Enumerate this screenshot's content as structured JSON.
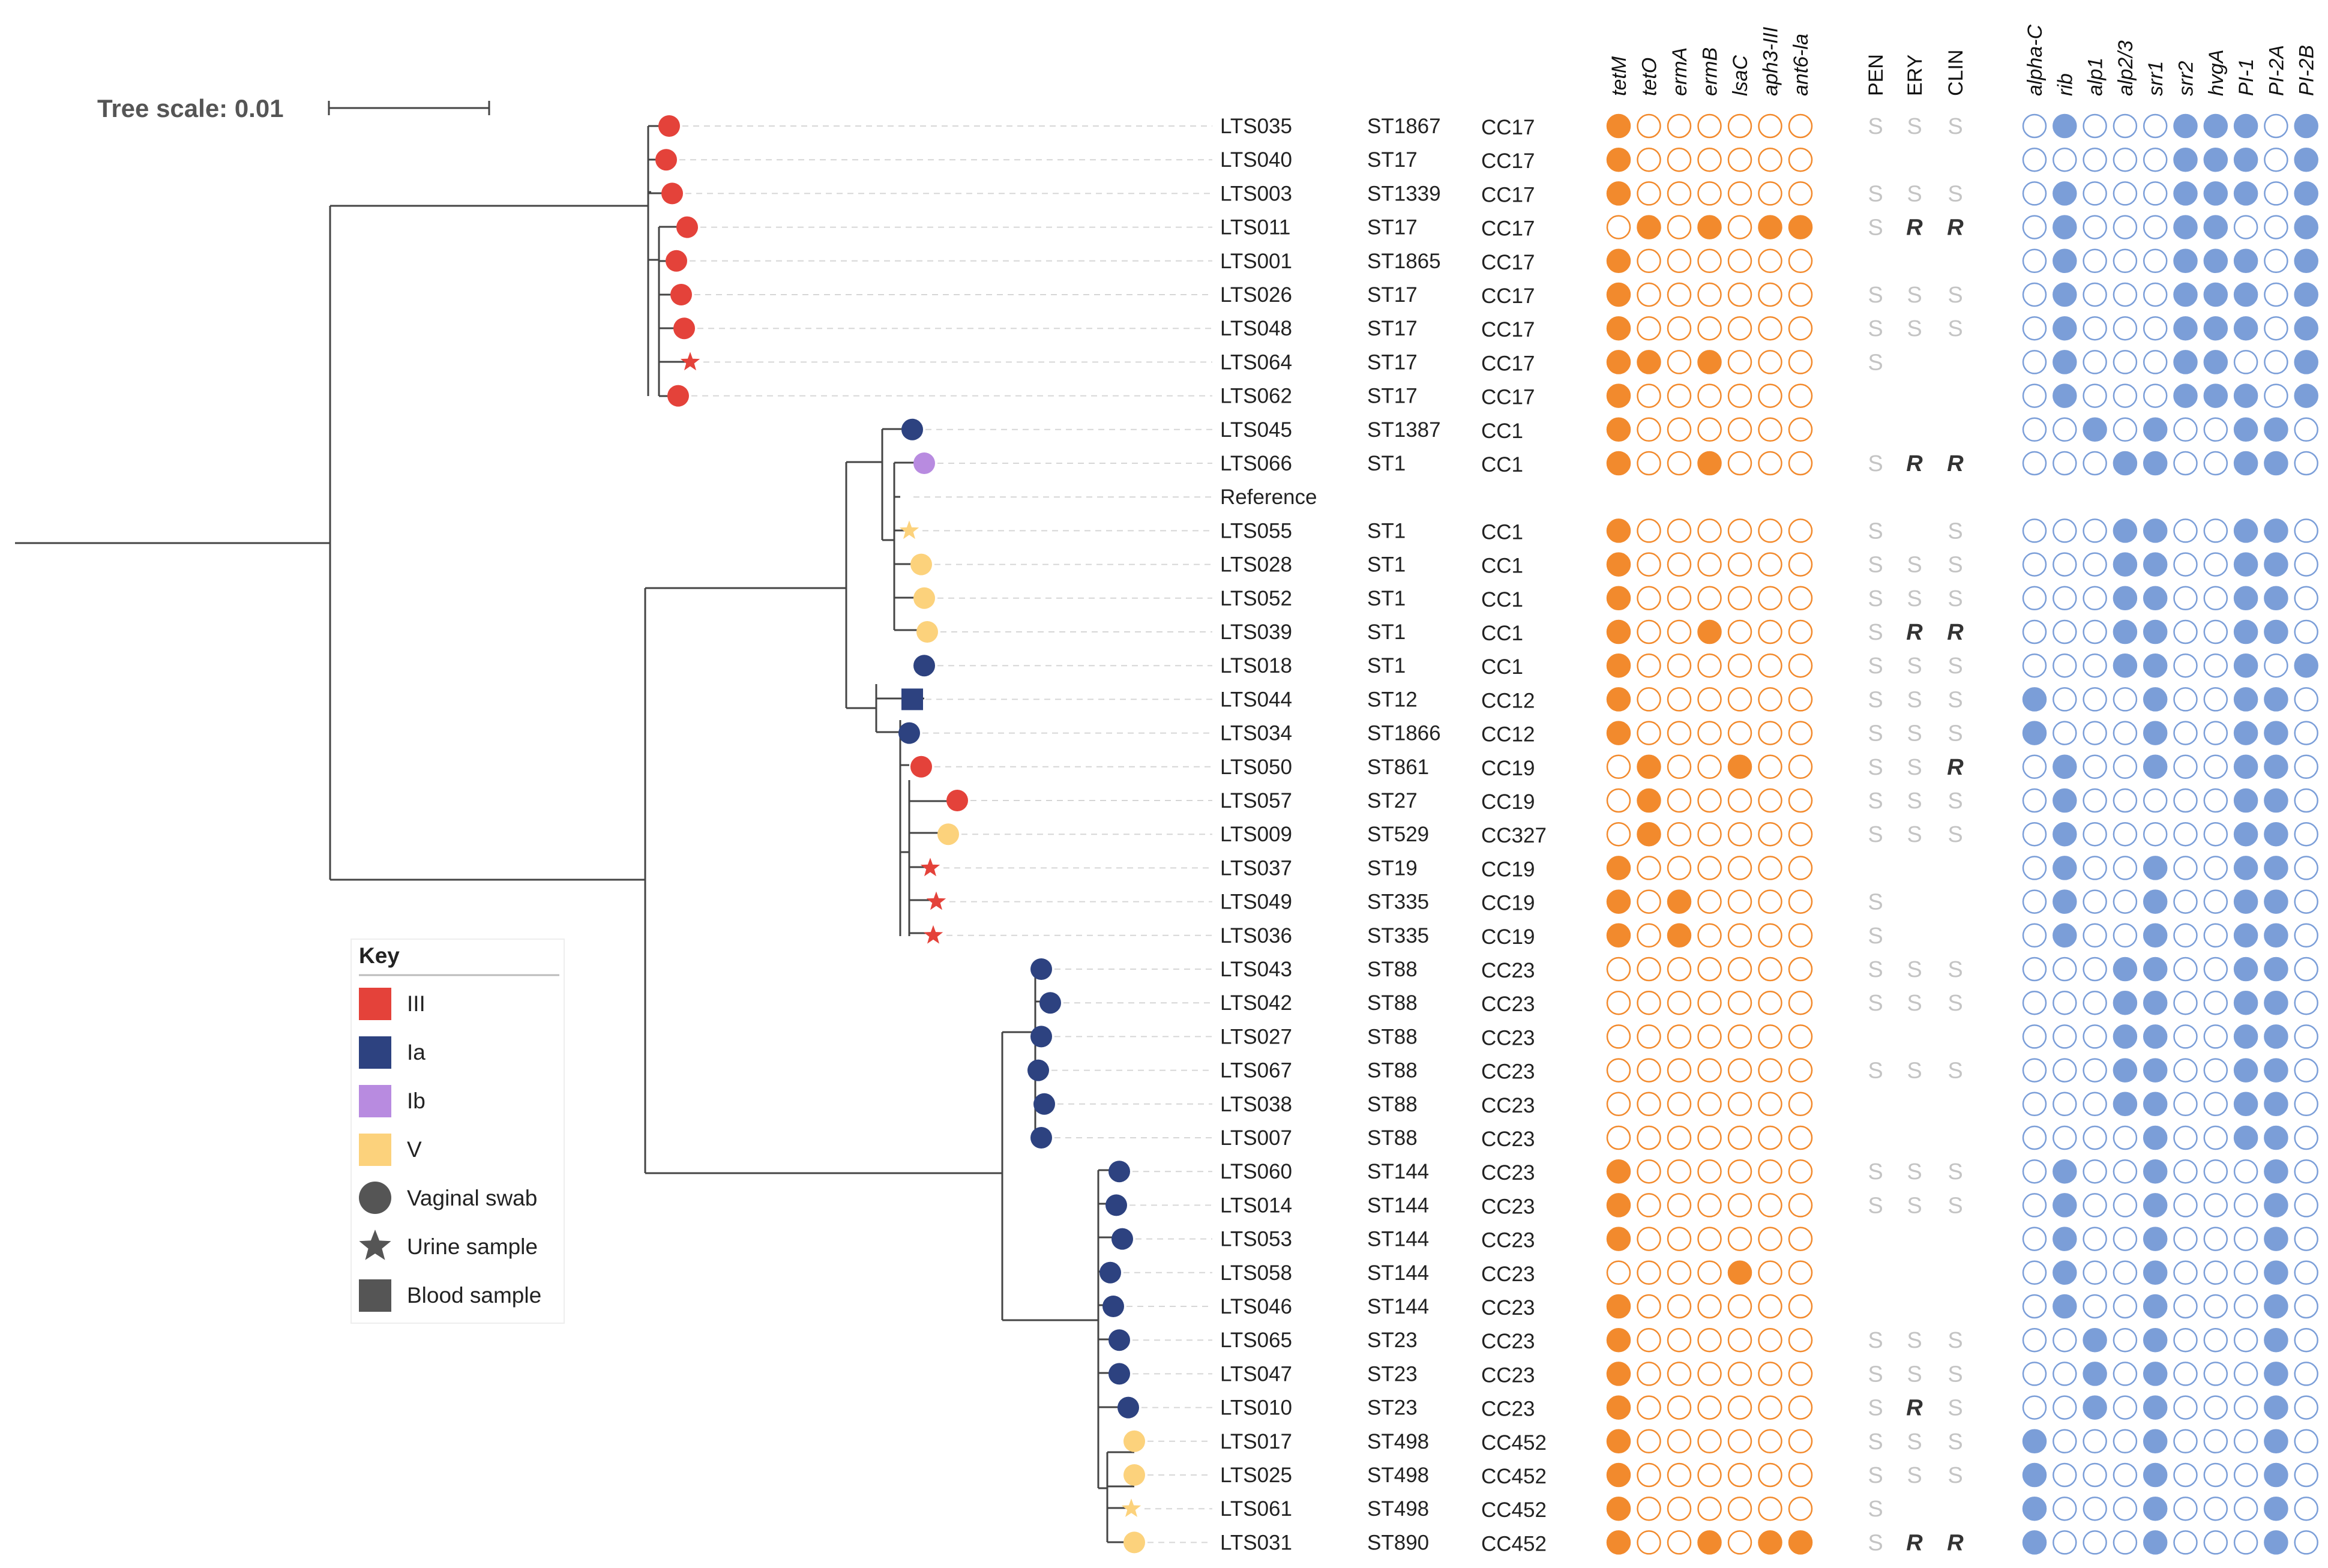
{
  "tree_scale": {
    "label": "Tree scale: 0.01"
  },
  "colors": {
    "III": "#e4423a",
    "Ia": "#2d4280",
    "Ib": "#b88be0",
    "V": "#fcd27c",
    "gene": "#f28a2d",
    "virulence": "#7b9ed8",
    "res_S": "#c4c4c4",
    "res_R": "#333333",
    "cc_normal": "#222222",
    "cc_purple": "#3d3883"
  },
  "gene_headers": [
    "tetM",
    "tetO",
    "ermA",
    "ermB",
    "lsaC",
    "aph3-III",
    "ant6-la"
  ],
  "res_headers": [
    "PEN",
    "ERY",
    "CLIN"
  ],
  "vir_headers": [
    "alpha-C",
    "rib",
    "alp1",
    "alp2/3",
    "srr1",
    "srr2",
    "hvgA",
    "PI-1",
    "PI-2A",
    "PI-2B"
  ],
  "key": {
    "title": "Key",
    "items": [
      {
        "label": "III",
        "shape": "square",
        "color": "#e4423a"
      },
      {
        "label": "Ia",
        "shape": "square",
        "color": "#2d4280"
      },
      {
        "label": "Ib",
        "shape": "square",
        "color": "#b88be0"
      },
      {
        "label": "V",
        "shape": "square",
        "color": "#fcd27c"
      },
      {
        "label": "Vaginal swab",
        "shape": "circle",
        "color": "#555555"
      },
      {
        "label": "Urine sample",
        "shape": "star",
        "color": "#555555"
      },
      {
        "label": "Blood sample",
        "shape": "square",
        "color": "#555555"
      }
    ]
  },
  "rows": [
    {
      "id": "LTS035",
      "st": "ST1867",
      "cc": "CC17",
      "serotype": "III",
      "source": "vaginal",
      "genes": [
        1,
        0,
        0,
        0,
        0,
        0,
        0
      ],
      "res": [
        "S",
        "S",
        "S"
      ],
      "vir": [
        0,
        1,
        0,
        0,
        0,
        1,
        1,
        1,
        0,
        1
      ]
    },
    {
      "id": "LTS040",
      "st": "ST17",
      "cc": "CC17",
      "serotype": "III",
      "source": "vaginal",
      "genes": [
        1,
        0,
        0,
        0,
        0,
        0,
        0
      ],
      "res": [
        "",
        "",
        ""
      ],
      "vir": [
        0,
        0,
        0,
        0,
        0,
        1,
        1,
        1,
        0,
        1
      ]
    },
    {
      "id": "LTS003",
      "st": "ST1339",
      "cc": "CC17",
      "serotype": "III",
      "source": "vaginal",
      "genes": [
        1,
        0,
        0,
        0,
        0,
        0,
        0
      ],
      "res": [
        "S",
        "S",
        "S"
      ],
      "vir": [
        0,
        1,
        0,
        0,
        0,
        1,
        1,
        1,
        0,
        1
      ]
    },
    {
      "id": "LTS011",
      "st": "ST17",
      "cc": "CC17",
      "serotype": "III",
      "source": "vaginal",
      "genes": [
        0,
        1,
        0,
        1,
        0,
        1,
        1
      ],
      "res": [
        "S",
        "R",
        "R"
      ],
      "vir": [
        0,
        1,
        0,
        0,
        0,
        1,
        1,
        0,
        0,
        1
      ]
    },
    {
      "id": "LTS001",
      "st": "ST1865",
      "cc": "CC17",
      "serotype": "III",
      "source": "vaginal",
      "genes": [
        1,
        0,
        0,
        0,
        0,
        0,
        0
      ],
      "res": [
        "",
        "",
        ""
      ],
      "vir": [
        0,
        1,
        0,
        0,
        0,
        1,
        1,
        1,
        0,
        1
      ]
    },
    {
      "id": "LTS026",
      "st": "ST17",
      "cc": "CC17",
      "serotype": "III",
      "source": "vaginal",
      "genes": [
        1,
        0,
        0,
        0,
        0,
        0,
        0
      ],
      "res": [
        "S",
        "S",
        "S"
      ],
      "vir": [
        0,
        1,
        0,
        0,
        0,
        1,
        1,
        1,
        0,
        1
      ]
    },
    {
      "id": "LTS048",
      "st": "ST17",
      "cc": "CC17",
      "serotype": "III",
      "source": "vaginal",
      "genes": [
        1,
        0,
        0,
        0,
        0,
        0,
        0
      ],
      "res": [
        "S",
        "S",
        "S"
      ],
      "vir": [
        0,
        1,
        0,
        0,
        0,
        1,
        1,
        1,
        0,
        1
      ]
    },
    {
      "id": "LTS064",
      "st": "ST17",
      "cc": "CC17",
      "serotype": "III",
      "source": "urine",
      "genes": [
        1,
        1,
        0,
        1,
        0,
        0,
        0
      ],
      "res": [
        "S",
        "",
        ""
      ],
      "vir": [
        0,
        1,
        0,
        0,
        0,
        1,
        1,
        0,
        0,
        1
      ]
    },
    {
      "id": "LTS062",
      "st": "ST17",
      "cc": "CC17",
      "serotype": "III",
      "source": "vaginal",
      "genes": [
        1,
        0,
        0,
        0,
        0,
        0,
        0
      ],
      "res": [
        "",
        "",
        ""
      ],
      "vir": [
        0,
        1,
        0,
        0,
        0,
        1,
        1,
        1,
        0,
        1
      ]
    },
    {
      "id": "LTS045",
      "st": "ST1387",
      "cc": "CC1",
      "serotype": "Ia",
      "source": "vaginal",
      "genes": [
        1,
        0,
        0,
        0,
        0,
        0,
        0
      ],
      "res": [
        "",
        "",
        ""
      ],
      "vir": [
        0,
        0,
        1,
        0,
        1,
        0,
        0,
        1,
        1,
        0
      ]
    },
    {
      "id": "LTS066",
      "st": "ST1",
      "cc": "CC1",
      "serotype": "Ib",
      "source": "vaginal",
      "genes": [
        1,
        0,
        0,
        1,
        0,
        0,
        0
      ],
      "res": [
        "S",
        "R",
        "R"
      ],
      "vir": [
        0,
        0,
        0,
        1,
        1,
        0,
        0,
        1,
        1,
        0
      ]
    },
    {
      "id": "Reference",
      "st": "",
      "cc": "",
      "serotype": "",
      "source": "",
      "genes": null,
      "res": [
        "",
        "",
        ""
      ],
      "vir": null
    },
    {
      "id": "LTS055",
      "st": "ST1",
      "cc": "CC1",
      "serotype": "V",
      "source": "urine",
      "genes": [
        1,
        0,
        0,
        0,
        0,
        0,
        0
      ],
      "res": [
        "S",
        "",
        "S"
      ],
      "vir": [
        0,
        0,
        0,
        1,
        1,
        0,
        0,
        1,
        1,
        0
      ]
    },
    {
      "id": "LTS028",
      "st": "ST1",
      "cc": "CC1",
      "serotype": "V",
      "source": "vaginal",
      "genes": [
        1,
        0,
        0,
        0,
        0,
        0,
        0
      ],
      "res": [
        "S",
        "S",
        "S"
      ],
      "vir": [
        0,
        0,
        0,
        1,
        1,
        0,
        0,
        1,
        1,
        0
      ]
    },
    {
      "id": "LTS052",
      "st": "ST1",
      "cc": "CC1",
      "serotype": "V",
      "source": "vaginal",
      "genes": [
        1,
        0,
        0,
        0,
        0,
        0,
        0
      ],
      "res": [
        "S",
        "S",
        "S"
      ],
      "vir": [
        0,
        0,
        0,
        1,
        1,
        0,
        0,
        1,
        1,
        0
      ]
    },
    {
      "id": "LTS039",
      "st": "ST1",
      "cc": "CC1",
      "serotype": "V",
      "source": "vaginal",
      "genes": [
        1,
        0,
        0,
        1,
        0,
        0,
        0
      ],
      "res": [
        "S",
        "R",
        "R"
      ],
      "vir": [
        0,
        0,
        0,
        1,
        1,
        0,
        0,
        1,
        1,
        0
      ]
    },
    {
      "id": "LTS018",
      "st": "ST1",
      "cc": "CC1",
      "serotype": "Ia",
      "source": "vaginal",
      "genes": [
        1,
        0,
        0,
        0,
        0,
        0,
        0
      ],
      "res": [
        "S",
        "S",
        "S"
      ],
      "vir": [
        0,
        0,
        0,
        1,
        1,
        0,
        0,
        1,
        0,
        1
      ]
    },
    {
      "id": "LTS044",
      "st": "ST12",
      "cc": "CC12",
      "serotype": "Ia",
      "source": "blood",
      "genes": [
        1,
        0,
        0,
        0,
        0,
        0,
        0
      ],
      "res": [
        "S",
        "S",
        "S"
      ],
      "vir": [
        1,
        0,
        0,
        0,
        1,
        0,
        0,
        1,
        1,
        0
      ]
    },
    {
      "id": "LTS034",
      "st": "ST1866",
      "cc": "CC12",
      "serotype": "Ia",
      "source": "vaginal",
      "genes": [
        1,
        0,
        0,
        0,
        0,
        0,
        0
      ],
      "res": [
        "S",
        "S",
        "S"
      ],
      "vir": [
        1,
        0,
        0,
        0,
        1,
        0,
        0,
        1,
        1,
        0
      ]
    },
    {
      "id": "LTS050",
      "st": "ST861",
      "cc": "CC19",
      "serotype": "III",
      "source": "vaginal",
      "genes": [
        0,
        1,
        0,
        0,
        1,
        0,
        0
      ],
      "res": [
        "S",
        "S",
        "R"
      ],
      "vir": [
        0,
        1,
        0,
        0,
        1,
        0,
        0,
        1,
        1,
        0
      ]
    },
    {
      "id": "LTS057",
      "st": "ST27",
      "cc": "CC19",
      "serotype": "III",
      "source": "vaginal",
      "genes": [
        0,
        1,
        0,
        0,
        0,
        0,
        0
      ],
      "res": [
        "S",
        "S",
        "S"
      ],
      "vir": [
        0,
        1,
        0,
        0,
        0,
        0,
        0,
        1,
        1,
        0
      ]
    },
    {
      "id": "LTS009",
      "st": "ST529",
      "cc": "CC327",
      "serotype": "V",
      "source": "vaginal",
      "genes": [
        0,
        1,
        0,
        0,
        0,
        0,
        0
      ],
      "res": [
        "S",
        "S",
        "S"
      ],
      "vir": [
        0,
        1,
        0,
        0,
        0,
        0,
        0,
        1,
        1,
        0
      ]
    },
    {
      "id": "LTS037",
      "st": "ST19",
      "cc": "CC19",
      "serotype": "III",
      "source": "urine",
      "genes": [
        1,
        0,
        0,
        0,
        0,
        0,
        0
      ],
      "res": [
        "",
        "",
        ""
      ],
      "vir": [
        0,
        1,
        0,
        0,
        1,
        0,
        0,
        1,
        1,
        0
      ]
    },
    {
      "id": "LTS049",
      "st": "ST335",
      "cc": "CC19",
      "serotype": "III",
      "source": "urine",
      "genes": [
        1,
        0,
        1,
        0,
        0,
        0,
        0
      ],
      "res": [
        "S",
        "",
        ""
      ],
      "vir": [
        0,
        1,
        0,
        0,
        1,
        0,
        0,
        1,
        1,
        0
      ]
    },
    {
      "id": "LTS036",
      "st": "ST335",
      "cc": "CC19",
      "serotype": "III",
      "source": "urine",
      "genes": [
        1,
        0,
        1,
        0,
        0,
        0,
        0
      ],
      "res": [
        "S",
        "",
        ""
      ],
      "vir": [
        0,
        1,
        0,
        0,
        1,
        0,
        0,
        1,
        1,
        0
      ]
    },
    {
      "id": "LTS043",
      "st": "ST88",
      "cc": "CC23",
      "serotype": "Ia",
      "source": "vaginal",
      "genes": [
        0,
        0,
        0,
        0,
        0,
        0,
        0
      ],
      "res": [
        "S",
        "S",
        "S"
      ],
      "vir": [
        0,
        0,
        0,
        1,
        1,
        0,
        0,
        1,
        1,
        0
      ]
    },
    {
      "id": "LTS042",
      "st": "ST88",
      "cc": "CC23",
      "serotype": "Ia",
      "source": "vaginal",
      "genes": [
        0,
        0,
        0,
        0,
        0,
        0,
        0
      ],
      "res": [
        "S",
        "S",
        "S"
      ],
      "vir": [
        0,
        0,
        0,
        1,
        1,
        0,
        0,
        1,
        1,
        0
      ]
    },
    {
      "id": "LTS027",
      "st": "ST88",
      "cc": "CC23",
      "serotype": "Ia",
      "source": "vaginal",
      "genes": [
        0,
        0,
        0,
        0,
        0,
        0,
        0
      ],
      "res": [
        "",
        "",
        ""
      ],
      "vir": [
        0,
        0,
        0,
        1,
        1,
        0,
        0,
        1,
        1,
        0
      ]
    },
    {
      "id": "LTS067",
      "st": "ST88",
      "cc": "CC23",
      "serotype": "Ia",
      "source": "vaginal",
      "genes": [
        0,
        0,
        0,
        0,
        0,
        0,
        0
      ],
      "res": [
        "S",
        "S",
        "S"
      ],
      "vir": [
        0,
        0,
        0,
        1,
        1,
        0,
        0,
        1,
        1,
        0
      ]
    },
    {
      "id": "LTS038",
      "st": "ST88",
      "cc": "CC23",
      "serotype": "Ia",
      "source": "vaginal",
      "genes": [
        0,
        0,
        0,
        0,
        0,
        0,
        0
      ],
      "res": [
        "",
        "",
        ""
      ],
      "vir": [
        0,
        0,
        0,
        1,
        1,
        0,
        0,
        1,
        1,
        0
      ]
    },
    {
      "id": "LTS007",
      "st": "ST88",
      "cc": "CC23",
      "serotype": "Ia",
      "source": "vaginal",
      "genes": [
        0,
        0,
        0,
        0,
        0,
        0,
        0
      ],
      "res": [
        "",
        "",
        ""
      ],
      "vir": [
        0,
        0,
        0,
        0,
        1,
        0,
        0,
        1,
        1,
        0
      ]
    },
    {
      "id": "LTS060",
      "st": "ST144",
      "cc": "CC23",
      "serotype": "Ia",
      "source": "vaginal",
      "genes": [
        1,
        0,
        0,
        0,
        0,
        0,
        0
      ],
      "res": [
        "S",
        "S",
        "S"
      ],
      "vir": [
        0,
        1,
        0,
        0,
        1,
        0,
        0,
        0,
        1,
        0
      ]
    },
    {
      "id": "LTS014",
      "st": "ST144",
      "cc": "CC23",
      "serotype": "Ia",
      "source": "vaginal",
      "genes": [
        1,
        0,
        0,
        0,
        0,
        0,
        0
      ],
      "res": [
        "S",
        "S",
        "S"
      ],
      "vir": [
        0,
        1,
        0,
        0,
        1,
        0,
        0,
        0,
        1,
        0
      ]
    },
    {
      "id": "LTS053",
      "st": "ST144",
      "cc": "CC23",
      "serotype": "Ia",
      "source": "vaginal",
      "genes": [
        1,
        0,
        0,
        0,
        0,
        0,
        0
      ],
      "res": [
        "",
        "",
        ""
      ],
      "vir": [
        0,
        1,
        0,
        0,
        1,
        0,
        0,
        0,
        1,
        0
      ]
    },
    {
      "id": "LTS058",
      "st": "ST144",
      "cc": "CC23",
      "serotype": "Ia",
      "source": "vaginal",
      "genes": [
        0,
        0,
        0,
        0,
        1,
        0,
        0
      ],
      "res": [
        "",
        "",
        ""
      ],
      "vir": [
        0,
        1,
        0,
        0,
        1,
        0,
        0,
        0,
        1,
        0
      ]
    },
    {
      "id": "LTS046",
      "st": "ST144",
      "cc": "CC23",
      "serotype": "Ia",
      "source": "vaginal",
      "genes": [
        1,
        0,
        0,
        0,
        0,
        0,
        0
      ],
      "res": [
        "",
        "",
        ""
      ],
      "vir": [
        0,
        1,
        0,
        0,
        1,
        0,
        0,
        0,
        1,
        0
      ]
    },
    {
      "id": "LTS065",
      "st": "ST23",
      "cc": "CC23",
      "serotype": "Ia",
      "source": "vaginal",
      "genes": [
        1,
        0,
        0,
        0,
        0,
        0,
        0
      ],
      "res": [
        "S",
        "S",
        "S"
      ],
      "vir": [
        0,
        0,
        1,
        0,
        1,
        0,
        0,
        0,
        1,
        0
      ]
    },
    {
      "id": "LTS047",
      "st": "ST23",
      "cc": "CC23",
      "serotype": "Ia",
      "source": "vaginal",
      "genes": [
        1,
        0,
        0,
        0,
        0,
        0,
        0
      ],
      "res": [
        "S",
        "S",
        "S"
      ],
      "vir": [
        0,
        0,
        1,
        0,
        1,
        0,
        0,
        0,
        1,
        0
      ]
    },
    {
      "id": "LTS010",
      "st": "ST23",
      "cc": "CC23",
      "serotype": "Ia",
      "source": "vaginal",
      "genes": [
        1,
        0,
        0,
        0,
        0,
        0,
        0
      ],
      "res": [
        "S",
        "R",
        "S"
      ],
      "vir": [
        0,
        0,
        1,
        0,
        1,
        0,
        0,
        0,
        1,
        0
      ]
    },
    {
      "id": "LTS017",
      "st": "ST498",
      "cc": "CC452",
      "serotype": "V",
      "source": "vaginal",
      "genes": [
        1,
        0,
        0,
        0,
        0,
        0,
        0
      ],
      "res": [
        "S",
        "S",
        "S"
      ],
      "vir": [
        1,
        0,
        0,
        0,
        1,
        0,
        0,
        0,
        1,
        0
      ]
    },
    {
      "id": "LTS025",
      "st": "ST498",
      "cc": "CC452",
      "serotype": "V",
      "source": "vaginal",
      "genes": [
        1,
        0,
        0,
        0,
        0,
        0,
        0
      ],
      "res": [
        "S",
        "S",
        "S"
      ],
      "vir": [
        1,
        0,
        0,
        0,
        1,
        0,
        0,
        0,
        1,
        0
      ]
    },
    {
      "id": "LTS061",
      "st": "ST498",
      "cc": "CC452",
      "serotype": "V",
      "source": "urine",
      "genes": [
        1,
        0,
        0,
        0,
        0,
        0,
        0
      ],
      "res": [
        "S",
        "",
        ""
      ],
      "vir": [
        1,
        0,
        0,
        0,
        1,
        0,
        0,
        0,
        1,
        0
      ]
    },
    {
      "id": "LTS031",
      "st": "ST890",
      "cc": "CC452",
      "serotype": "V",
      "source": "vaginal",
      "genes": [
        1,
        0,
        0,
        1,
        0,
        1,
        1
      ],
      "res": [
        "S",
        "R",
        "R"
      ],
      "vir": [
        1,
        0,
        0,
        0,
        1,
        0,
        0,
        0,
        1,
        0
      ]
    }
  ]
}
